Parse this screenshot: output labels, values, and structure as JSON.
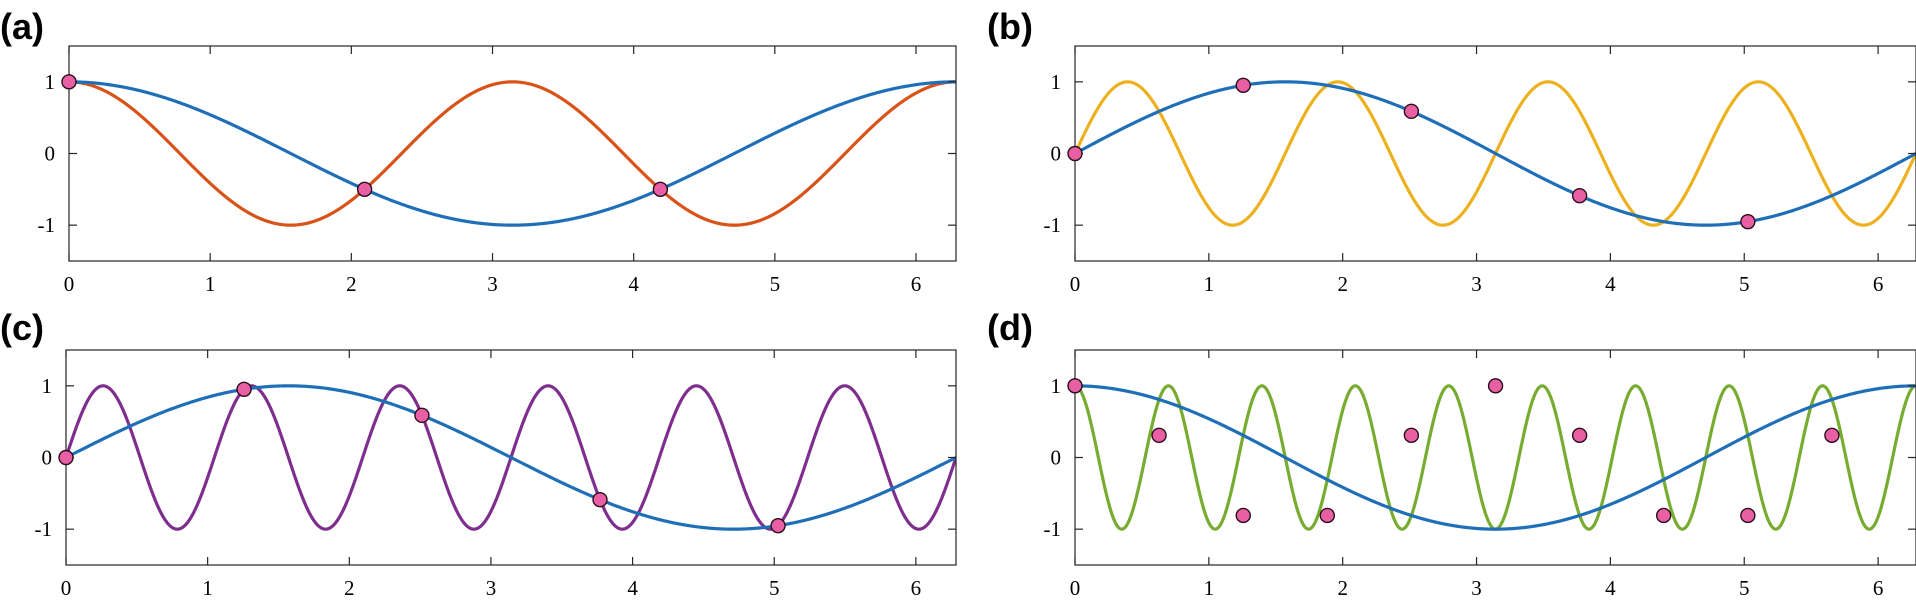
{
  "colors": {
    "blue": "#1f6fb8",
    "orange": "#d95319",
    "yellow": "#edb120",
    "purple": "#7e2f8e",
    "green": "#77ac30",
    "marker": "#e85fa3"
  },
  "chart_data": [
    {
      "type": "line",
      "panel_label": "(a)",
      "xlim": [
        0,
        6.2832
      ],
      "ylim": [
        -1.5,
        1.5
      ],
      "xticks": [
        0,
        1,
        2,
        3,
        4,
        5,
        6
      ],
      "yticks": [
        -1,
        0,
        1
      ],
      "xtick_labels": [
        "0",
        "1",
        "2",
        "3",
        "4",
        "5",
        "6"
      ],
      "ytick_labels": [
        "-1",
        "0",
        "1"
      ],
      "grid": false,
      "series": [
        {
          "function": "cos",
          "frequency": 1,
          "color": "#1f6fb8"
        },
        {
          "function": "cos",
          "frequency": 2,
          "color": "#d95319"
        }
      ],
      "markers": [
        {
          "x": 0,
          "y": 1
        },
        {
          "x": 2.094,
          "y": -0.5
        },
        {
          "x": 4.189,
          "y": -0.5
        }
      ]
    },
    {
      "type": "line",
      "panel_label": "(b)",
      "xlim": [
        0,
        6.2832
      ],
      "ylim": [
        -1.5,
        1.5
      ],
      "xticks": [
        0,
        1,
        2,
        3,
        4,
        5,
        6
      ],
      "yticks": [
        -1,
        0,
        1
      ],
      "xtick_labels": [
        "0",
        "1",
        "2",
        "3",
        "4",
        "5",
        "6"
      ],
      "ytick_labels": [
        "-1",
        "0",
        "1"
      ],
      "grid": false,
      "series": [
        {
          "function": "sin",
          "frequency": 1,
          "color": "#1f6fb8"
        },
        {
          "function": "sin",
          "frequency": 4,
          "color": "#edb120"
        }
      ],
      "markers": [
        {
          "x": 0,
          "y": 0
        },
        {
          "x": 1.257,
          "y": 0.951
        },
        {
          "x": 2.513,
          "y": 0.588
        },
        {
          "x": 3.77,
          "y": -0.588
        },
        {
          "x": 5.027,
          "y": -0.951
        }
      ]
    },
    {
      "type": "line",
      "panel_label": "(c)",
      "xlim": [
        0,
        6.2832
      ],
      "ylim": [
        -1.5,
        1.5
      ],
      "xticks": [
        0,
        1,
        2,
        3,
        4,
        5,
        6
      ],
      "yticks": [
        -1,
        0,
        1
      ],
      "xtick_labels": [
        "0",
        "1",
        "2",
        "3",
        "4",
        "5",
        "6"
      ],
      "ytick_labels": [
        "-1",
        "0",
        "1"
      ],
      "grid": false,
      "series": [
        {
          "function": "sin",
          "frequency": 1,
          "color": "#1f6fb8"
        },
        {
          "function": "sin",
          "frequency": 6,
          "color": "#7e2f8e"
        }
      ],
      "markers": [
        {
          "x": 0,
          "y": 0
        },
        {
          "x": 1.257,
          "y": 0.951
        },
        {
          "x": 2.513,
          "y": 0.588
        },
        {
          "x": 3.77,
          "y": -0.588
        },
        {
          "x": 5.027,
          "y": -0.951
        }
      ]
    },
    {
      "type": "line",
      "panel_label": "(d)",
      "xlim": [
        0,
        6.2832
      ],
      "ylim": [
        -1.5,
        1.5
      ],
      "xticks": [
        0,
        1,
        2,
        3,
        4,
        5,
        6
      ],
      "yticks": [
        -1,
        0,
        1
      ],
      "xtick_labels": [
        "0",
        "1",
        "2",
        "3",
        "4",
        "5",
        "6"
      ],
      "ytick_labels": [
        "-1",
        "0",
        "1"
      ],
      "grid": false,
      "series": [
        {
          "function": "cos",
          "frequency": 1,
          "color": "#1f6fb8"
        },
        {
          "function": "cos",
          "frequency": 9,
          "color": "#77ac30"
        }
      ],
      "markers": [
        {
          "x": 0,
          "y": 1
        },
        {
          "x": 0.628,
          "y": 0.309
        },
        {
          "x": 1.257,
          "y": -0.809
        },
        {
          "x": 1.885,
          "y": -0.809
        },
        {
          "x": 2.513,
          "y": 0.309
        },
        {
          "x": 3.142,
          "y": 1
        },
        {
          "x": 3.77,
          "y": 0.309
        },
        {
          "x": 4.398,
          "y": -0.809
        },
        {
          "x": 5.027,
          "y": -0.809
        },
        {
          "x": 5.655,
          "y": 0.309
        }
      ]
    }
  ]
}
